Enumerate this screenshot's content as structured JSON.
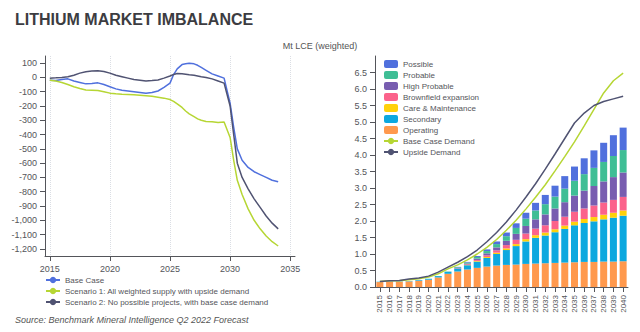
{
  "title": "LITHIUM MARKET IMBALANCE",
  "subtitle": "Mt LCE (weighted)",
  "annotations": [
    "Source: Benchmark Mineral Intelligence Q2 2022 Forecast"
  ],
  "chart_data": [
    {
      "type": "line",
      "x": [
        2015,
        2015.5,
        2016,
        2016.5,
        2017,
        2017.5,
        2018,
        2018.5,
        2019,
        2019.5,
        2020,
        2020.5,
        2021,
        2021.5,
        2022,
        2022.5,
        2023,
        2023.5,
        2024,
        2024.5,
        2025,
        2025.3,
        2025.6,
        2026,
        2026.3,
        2026.6,
        2027,
        2027.3,
        2027.6,
        2028,
        2028.5,
        2029,
        2029.5,
        2030,
        2030.3,
        2030.6,
        2031,
        2031.5,
        2032,
        2032.5,
        2033,
        2033.5,
        2034
      ],
      "series": [
        {
          "name": "Base Case",
          "values": [
            -20,
            -22,
            -15,
            -10,
            -25,
            -35,
            -45,
            -42,
            -38,
            -50,
            -65,
            -80,
            -90,
            -95,
            -100,
            -105,
            -110,
            -105,
            -95,
            -70,
            -40,
            20,
            60,
            90,
            95,
            100,
            95,
            85,
            70,
            50,
            25,
            10,
            -5,
            -180,
            -350,
            -500,
            -580,
            -630,
            -660,
            -680,
            -700,
            -720,
            -730
          ]
        },
        {
          "name": "Scenario 1: All weighted supply with upside demand",
          "values": [
            -20,
            -25,
            -35,
            -50,
            -65,
            -78,
            -88,
            -90,
            -92,
            -100,
            -110,
            -115,
            -118,
            -120,
            -122,
            -125,
            -128,
            -132,
            -138,
            -145,
            -155,
            -168,
            -185,
            -210,
            -235,
            -255,
            -275,
            -290,
            -300,
            -308,
            -310,
            -315,
            -312,
            -420,
            -580,
            -720,
            -820,
            -920,
            -1000,
            -1060,
            -1110,
            -1150,
            -1180
          ]
        },
        {
          "name": "Scenario 2: No possible projects, with base case demand",
          "values": [
            -5,
            -3,
            0,
            5,
            15,
            30,
            40,
            45,
            47,
            42,
            30,
            15,
            5,
            -5,
            -15,
            -20,
            -25,
            -22,
            -18,
            -5,
            10,
            20,
            28,
            25,
            22,
            18,
            15,
            10,
            5,
            0,
            -10,
            -25,
            -40,
            -200,
            -400,
            -600,
            -700,
            -780,
            -850,
            -910,
            -970,
            -1020,
            -1060
          ]
        }
      ],
      "xlim": [
        2014.6,
        2035.4
      ],
      "xticks": [
        2015,
        2020,
        2025,
        2030,
        2035
      ],
      "ylim": [
        -1250,
        150
      ],
      "yticks": [
        {
          "value": -1200,
          "label": "-1,200"
        },
        {
          "value": -1100,
          "label": "-1,100"
        },
        {
          "value": -1000,
          "label": "-1,000"
        },
        -900,
        -800,
        -700,
        -600,
        -500,
        -400,
        -300,
        -200,
        -100,
        0,
        100
      ],
      "grid": "x",
      "legend": "bottom"
    },
    {
      "type": "bar",
      "stacked": true,
      "categories": [
        2015,
        2016,
        2017,
        2018,
        2019,
        2020,
        2021,
        2022,
        2023,
        2024,
        2025,
        2026,
        2027,
        2028,
        2029,
        2030,
        2031,
        2032,
        2033,
        2034,
        2035,
        2036,
        2037,
        2038,
        2039,
        2040
      ],
      "series": [
        {
          "name": "Operating",
          "type": "bar",
          "values": [
            0.15,
            0.16,
            0.16,
            0.17,
            0.19,
            0.22,
            0.29,
            0.4,
            0.47,
            0.53,
            0.58,
            0.62,
            0.65,
            0.67,
            0.68,
            0.7,
            0.71,
            0.72,
            0.73,
            0.74,
            0.75,
            0.76,
            0.76,
            0.77,
            0.77,
            0.78
          ]
        },
        {
          "name": "Secondary",
          "type": "bar",
          "values": [
            0.01,
            0.01,
            0.01,
            0.01,
            0.02,
            0.03,
            0.04,
            0.06,
            0.09,
            0.13,
            0.19,
            0.26,
            0.35,
            0.45,
            0.56,
            0.68,
            0.78,
            0.84,
            0.93,
            1.02,
            1.12,
            1.18,
            1.23,
            1.28,
            1.33,
            1.38
          ]
        },
        {
          "name": "Care & Maintenance",
          "type": "bar",
          "values": [
            0.0,
            0.0,
            0.0,
            0.0,
            0.0,
            0.0,
            0.0,
            0.0,
            0.0,
            0.01,
            0.02,
            0.03,
            0.04,
            0.05,
            0.06,
            0.07,
            0.08,
            0.09,
            0.09,
            0.1,
            0.11,
            0.12,
            0.13,
            0.14,
            0.15,
            0.16
          ]
        },
        {
          "name": "Brownfield expansion",
          "type": "bar",
          "values": [
            0.0,
            0.0,
            0.0,
            0.0,
            0.0,
            0.0,
            0.0,
            0.0,
            0.01,
            0.02,
            0.03,
            0.05,
            0.07,
            0.1,
            0.13,
            0.17,
            0.2,
            0.22,
            0.25,
            0.27,
            0.3,
            0.32,
            0.35,
            0.37,
            0.39,
            0.41
          ]
        },
        {
          "name": "High Probable",
          "type": "bar",
          "values": [
            0.0,
            0.0,
            0.0,
            0.0,
            0.0,
            0.0,
            0.0,
            0.0,
            0.01,
            0.02,
            0.04,
            0.06,
            0.09,
            0.13,
            0.18,
            0.23,
            0.28,
            0.33,
            0.38,
            0.44,
            0.49,
            0.54,
            0.59,
            0.64,
            0.69,
            0.74
          ]
        },
        {
          "name": "Probable",
          "type": "bar",
          "values": [
            0.0,
            0.0,
            0.0,
            0.0,
            0.0,
            0.0,
            0.0,
            0.01,
            0.02,
            0.03,
            0.05,
            0.07,
            0.1,
            0.14,
            0.18,
            0.22,
            0.27,
            0.31,
            0.36,
            0.41,
            0.45,
            0.5,
            0.55,
            0.59,
            0.64,
            0.68
          ]
        },
        {
          "name": "Possible",
          "type": "bar",
          "values": [
            0.0,
            0.0,
            0.0,
            0.0,
            0.0,
            0.0,
            0.0,
            0.0,
            0.01,
            0.02,
            0.03,
            0.05,
            0.08,
            0.11,
            0.14,
            0.18,
            0.23,
            0.28,
            0.33,
            0.38,
            0.43,
            0.48,
            0.53,
            0.58,
            0.63,
            0.68
          ]
        },
        {
          "name": "Base Case Demand",
          "type": "line",
          "values": [
            0.17,
            0.19,
            0.19,
            0.22,
            0.25,
            0.3,
            0.4,
            0.55,
            0.67,
            0.82,
            1.0,
            1.2,
            1.44,
            1.72,
            2.02,
            2.36,
            2.72,
            3.1,
            3.52,
            3.95,
            4.4,
            4.88,
            5.38,
            5.88,
            6.25,
            6.48
          ]
        },
        {
          "name": "Upside Demand",
          "type": "line",
          "values": [
            0.17,
            0.19,
            0.2,
            0.24,
            0.27,
            0.33,
            0.45,
            0.6,
            0.75,
            0.92,
            1.12,
            1.37,
            1.65,
            1.97,
            2.33,
            2.72,
            3.13,
            3.57,
            4.03,
            4.5,
            4.97,
            5.27,
            5.5,
            5.62,
            5.7,
            5.78
          ]
        }
      ],
      "ylim": [
        0,
        7.0
      ],
      "yticks": [
        {
          "value": 0,
          "label": "0.0"
        },
        0.5,
        {
          "value": 1,
          "label": "1.0"
        },
        1.5,
        {
          "value": 2,
          "label": "2.0"
        },
        2.5,
        {
          "value": 3,
          "label": "3.0"
        },
        3.5,
        {
          "value": 4,
          "label": "4.0"
        },
        4.5,
        {
          "value": 5,
          "label": "5.0"
        },
        5.5,
        {
          "value": 6,
          "label": "6.0"
        },
        6.5
      ],
      "grid": false,
      "legend": "upper left"
    }
  ]
}
